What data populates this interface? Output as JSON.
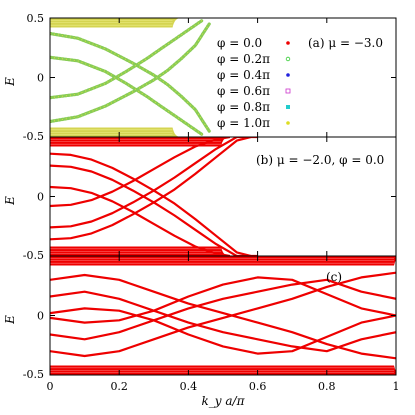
{
  "chart_data": [
    {
      "type": "line",
      "panel": "(a)",
      "annotation": "(a) μ = −3.0",
      "ylabel": "E",
      "xlim": [
        0,
        1
      ],
      "ylim": [
        -0.5,
        0.5
      ],
      "yticks": [
        "0.5",
        "0",
        "-0.5"
      ],
      "legend_position": "top-right",
      "series": [
        {
          "name": "φ = 0.0",
          "color": "#ee0000",
          "marker": "filled-circle"
        },
        {
          "name": "φ = 0.2π",
          "color": "#33cc33",
          "marker": "open-circle"
        },
        {
          "name": "φ = 0.4π",
          "color": "#2222dd",
          "marker": "filled-circle"
        },
        {
          "name": "φ = 0.6π",
          "color": "#cc33cc",
          "marker": "open-square"
        },
        {
          "name": "φ = 0.8π",
          "color": "#22cccc",
          "marker": "filled-square"
        },
        {
          "name": "φ = 1.0π",
          "color": "#dddd22",
          "marker": "filled-circle"
        }
      ],
      "curves": [
        {
          "x": [
            0,
            0.08,
            0.16,
            0.24,
            0.3,
            0.34,
            0.38,
            0.42,
            0.46
          ],
          "y": [
            0.37,
            0.33,
            0.24,
            0.12,
            0.02,
            -0.06,
            -0.16,
            -0.27,
            -0.45
          ]
        },
        {
          "x": [
            0,
            0.08,
            0.16,
            0.24,
            0.3,
            0.34,
            0.38,
            0.42,
            0.46
          ],
          "y": [
            -0.37,
            -0.33,
            -0.24,
            -0.12,
            -0.02,
            0.06,
            0.16,
            0.27,
            0.45
          ]
        },
        {
          "x": [
            0,
            0.08,
            0.16,
            0.22,
            0.28,
            0.32,
            0.36,
            0.4,
            0.44
          ],
          "y": [
            0.17,
            0.14,
            0.05,
            -0.05,
            -0.16,
            -0.24,
            -0.32,
            -0.4,
            -0.48
          ]
        },
        {
          "x": [
            0,
            0.08,
            0.16,
            0.22,
            0.28,
            0.32,
            0.36,
            0.4,
            0.44
          ],
          "y": [
            -0.17,
            -0.14,
            -0.05,
            0.05,
            0.16,
            0.24,
            0.32,
            0.4,
            0.48
          ]
        }
      ],
      "bands": [
        {
          "x": [
            0,
            0.36
          ],
          "y_top": 0.5,
          "y_bottom": 0.42,
          "edge": "upper"
        },
        {
          "x": [
            0,
            0.36
          ],
          "y_top": -0.42,
          "y_bottom": -0.5,
          "edge": "lower"
        }
      ]
    },
    {
      "type": "line",
      "panel": "(b)",
      "annotation": "(b) μ = −2.0, φ = 0.0",
      "ylabel": "E",
      "xlim": [
        0,
        1
      ],
      "ylim": [
        -0.5,
        0.5
      ],
      "yticks": [
        "0",
        "-0.5"
      ],
      "color": "#ee0000",
      "curves": [
        {
          "x": [
            0,
            0.06,
            0.12,
            0.18,
            0.24,
            0.3,
            0.36,
            0.42,
            0.48,
            0.54,
            0.58
          ],
          "y": [
            0.36,
            0.35,
            0.31,
            0.24,
            0.15,
            0.05,
            -0.06,
            -0.19,
            -0.33,
            -0.47,
            -0.5
          ]
        },
        {
          "x": [
            0,
            0.06,
            0.12,
            0.18,
            0.24,
            0.3,
            0.36,
            0.42,
            0.48,
            0.54,
            0.58
          ],
          "y": [
            -0.36,
            -0.35,
            -0.31,
            -0.24,
            -0.15,
            -0.05,
            0.06,
            0.19,
            0.33,
            0.47,
            0.5
          ]
        },
        {
          "x": [
            0,
            0.06,
            0.12,
            0.18,
            0.24,
            0.3,
            0.36,
            0.42,
            0.48,
            0.54,
            0.6
          ],
          "y": [
            0.26,
            0.25,
            0.21,
            0.14,
            0.05,
            -0.05,
            -0.16,
            -0.28,
            -0.4,
            -0.5,
            -0.5
          ]
        },
        {
          "x": [
            0,
            0.06,
            0.12,
            0.18,
            0.24,
            0.3,
            0.36,
            0.42,
            0.48,
            0.54,
            0.6
          ],
          "y": [
            -0.26,
            -0.25,
            -0.21,
            -0.14,
            -0.05,
            0.05,
            0.16,
            0.28,
            0.4,
            0.5,
            0.5
          ]
        },
        {
          "x": [
            0,
            0.06,
            0.12,
            0.18,
            0.24,
            0.3,
            0.36,
            0.42,
            0.48,
            0.52
          ],
          "y": [
            0.08,
            0.07,
            0.03,
            -0.04,
            -0.13,
            -0.23,
            -0.33,
            -0.42,
            -0.48,
            -0.5
          ]
        },
        {
          "x": [
            0,
            0.06,
            0.12,
            0.18,
            0.24,
            0.3,
            0.36,
            0.42,
            0.48,
            0.52
          ],
          "y": [
            -0.08,
            -0.07,
            -0.03,
            0.04,
            0.13,
            0.23,
            0.33,
            0.42,
            0.48,
            0.5
          ]
        }
      ],
      "bands": [
        {
          "x": [
            0,
            0.5
          ],
          "y_top": 0.5,
          "y_bottom": 0.42,
          "edge": "upper"
        },
        {
          "x": [
            0,
            0.5
          ],
          "y_top": -0.42,
          "y_bottom": -0.5,
          "edge": "lower"
        }
      ]
    },
    {
      "type": "line",
      "panel": "(c)",
      "annotation": "(c)",
      "ylabel": "E",
      "xlabel": "k_y a/π",
      "xlim": [
        0,
        1
      ],
      "ylim": [
        -0.5,
        0.5
      ],
      "xticks": [
        "0",
        "0.2",
        "0.4",
        "0.6",
        "0.8",
        "1"
      ],
      "yticks": [
        "0",
        "-0.5"
      ],
      "color": "#ee0000",
      "curves": [
        {
          "x": [
            0,
            0.1,
            0.2,
            0.3,
            0.4,
            0.5,
            0.6,
            0.7,
            0.8,
            0.9,
            1.0
          ],
          "y": [
            0.3,
            0.34,
            0.3,
            0.2,
            0.1,
            0.02,
            -0.06,
            -0.14,
            -0.24,
            -0.32,
            -0.36
          ]
        },
        {
          "x": [
            0,
            0.1,
            0.2,
            0.3,
            0.4,
            0.5,
            0.6,
            0.7,
            0.8,
            0.9,
            1.0
          ],
          "y": [
            -0.3,
            -0.34,
            -0.3,
            -0.2,
            -0.1,
            -0.02,
            0.06,
            0.14,
            0.24,
            0.32,
            0.36
          ]
        },
        {
          "x": [
            0,
            0.1,
            0.2,
            0.3,
            0.4,
            0.5,
            0.6,
            0.7,
            0.8,
            0.9,
            1.0
          ],
          "y": [
            0.16,
            0.2,
            0.14,
            0.04,
            -0.06,
            -0.14,
            -0.2,
            -0.26,
            -0.3,
            -0.2,
            -0.14
          ]
        },
        {
          "x": [
            0,
            0.1,
            0.2,
            0.3,
            0.4,
            0.5,
            0.6,
            0.7,
            0.8,
            0.9,
            1.0
          ],
          "y": [
            -0.16,
            -0.2,
            -0.14,
            -0.04,
            0.06,
            0.14,
            0.2,
            0.26,
            0.3,
            0.2,
            0.14
          ]
        },
        {
          "x": [
            0,
            0.1,
            0.2,
            0.3,
            0.4,
            0.5,
            0.6,
            0.7,
            0.8,
            0.9,
            1.0
          ],
          "y": [
            0.02,
            0.06,
            0.04,
            -0.04,
            -0.16,
            -0.26,
            -0.32,
            -0.3,
            -0.18,
            -0.06,
            0.0
          ]
        },
        {
          "x": [
            0,
            0.1,
            0.2,
            0.3,
            0.4,
            0.5,
            0.6,
            0.7,
            0.8,
            0.9,
            1.0
          ],
          "y": [
            -0.02,
            -0.06,
            -0.04,
            0.04,
            0.16,
            0.26,
            0.32,
            0.3,
            0.18,
            0.06,
            0.0
          ]
        }
      ],
      "bands": [
        {
          "x": [
            0,
            1.0
          ],
          "y_top": 0.5,
          "y_bottom": 0.42,
          "edge": "upper"
        },
        {
          "x": [
            0,
            1.0
          ],
          "y_top": -0.42,
          "y_bottom": -0.5,
          "edge": "lower"
        }
      ]
    }
  ]
}
